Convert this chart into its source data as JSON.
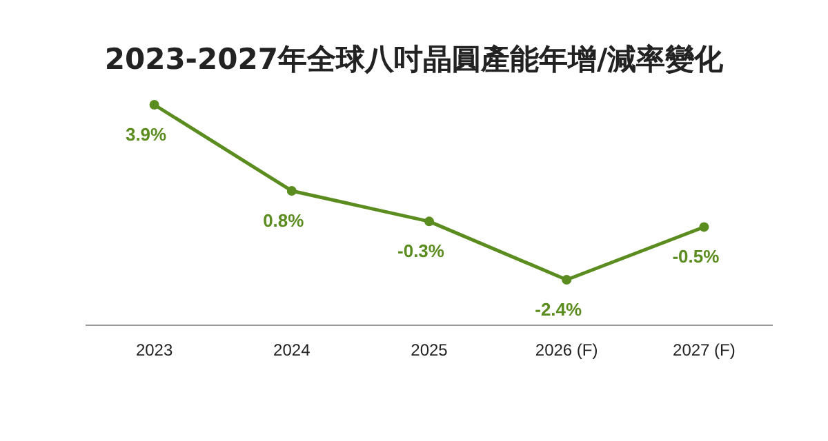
{
  "chart_data": {
    "type": "line",
    "title": "2023-2027年全球八吋晶圓產能年增/減率變化",
    "categories": [
      "2023",
      "2024",
      "2025",
      "2026 (F)",
      "2027 (F)"
    ],
    "series": [
      {
        "color": "#5b8c1f",
        "values": [
          3.9,
          0.8,
          -0.3,
          -2.4,
          -0.5
        ],
        "value_labels": [
          "3.9%",
          "0.8%",
          "-0.3%",
          "-2.4%",
          "-0.5%"
        ]
      }
    ],
    "marker": "circle"
  }
}
